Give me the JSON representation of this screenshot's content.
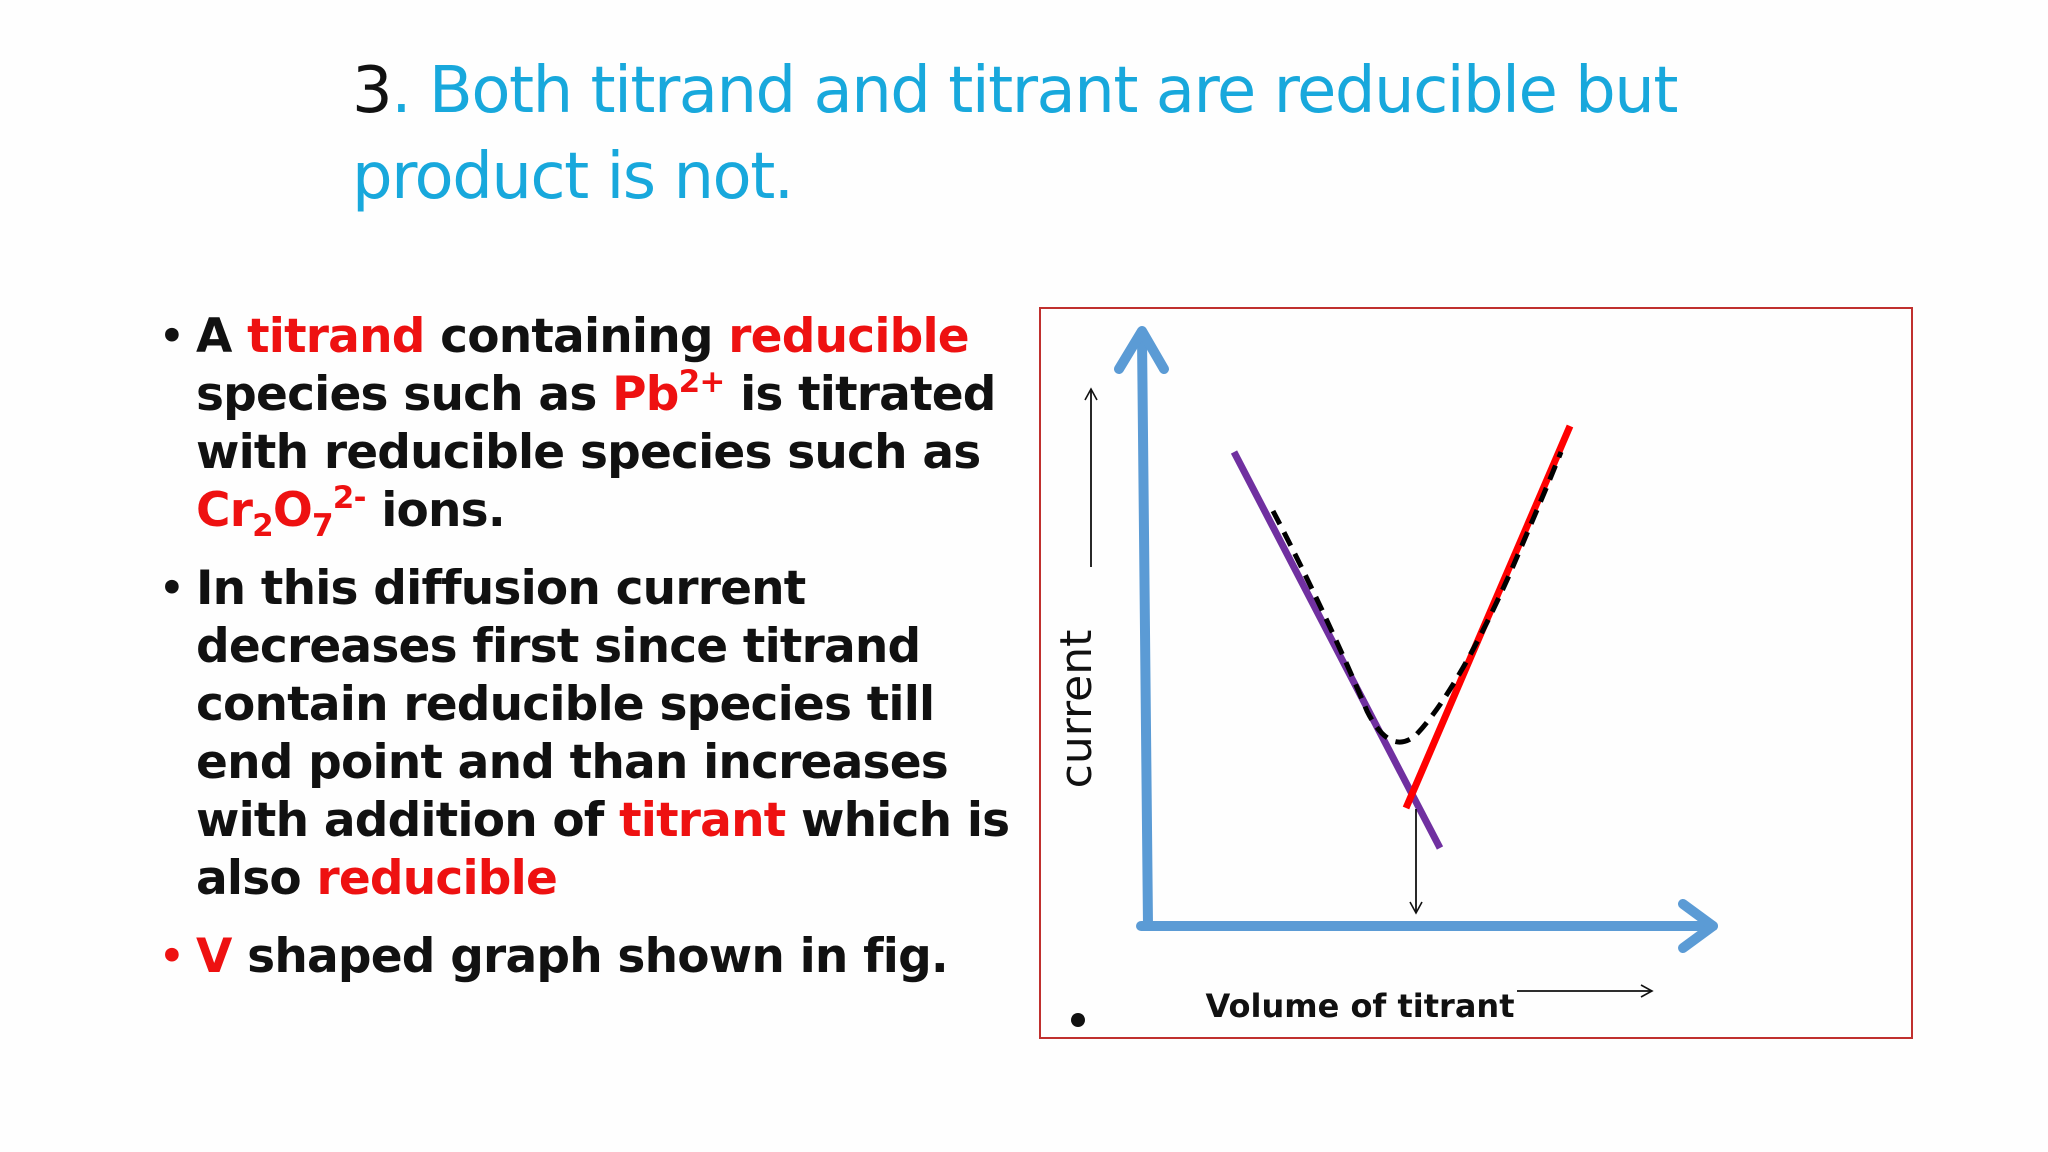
{
  "title": {
    "number": "3",
    "text": ". Both titrand and titrant are reducible but product is not."
  },
  "bullets": [
    {
      "segments": [
        {
          "text": "A ",
          "red": false
        },
        {
          "text": "titrand",
          "red": true
        },
        {
          "text": " containing ",
          "red": false
        },
        {
          "text": "reducible",
          "red": true
        },
        {
          "text": " species such as ",
          "red": false
        },
        {
          "text": "Pb",
          "red": true
        },
        {
          "text": "2+",
          "red": true,
          "sup": true
        },
        {
          "text": " is titrated with reducible species such as ",
          "red": false
        },
        {
          "text": "Cr",
          "red": true
        },
        {
          "text": "2",
          "red": true,
          "sub": true
        },
        {
          "text": "O",
          "red": true
        },
        {
          "text": "7",
          "red": true,
          "sub": true
        },
        {
          "text": "2-",
          "red": true,
          "sup": true
        },
        {
          "text": " ions.",
          "red": false
        }
      ]
    },
    {
      "segments": [
        {
          "text": "In this diffusion current decreases first since titrand contain reducible species  till end point and than increases with addition of ",
          "red": false
        },
        {
          "text": "titrant",
          "red": true
        },
        {
          "text": " which is also ",
          "red": false
        },
        {
          "text": "reducible",
          "red": true
        }
      ]
    },
    {
      "red_dot": true,
      "segments": [
        {
          "text": "V",
          "red": true
        },
        {
          "text": " shaped graph shown in fig.",
          "red": false
        }
      ]
    }
  ],
  "figure": {
    "y_axis_label": "current",
    "x_axis_label": "Volume of titrant",
    "colors": {
      "axes": "#5b9bd5",
      "descending_line": "#7030a0",
      "ascending_line": "#ff0000",
      "curve": "#000000",
      "frame": "#c0302e"
    }
  }
}
